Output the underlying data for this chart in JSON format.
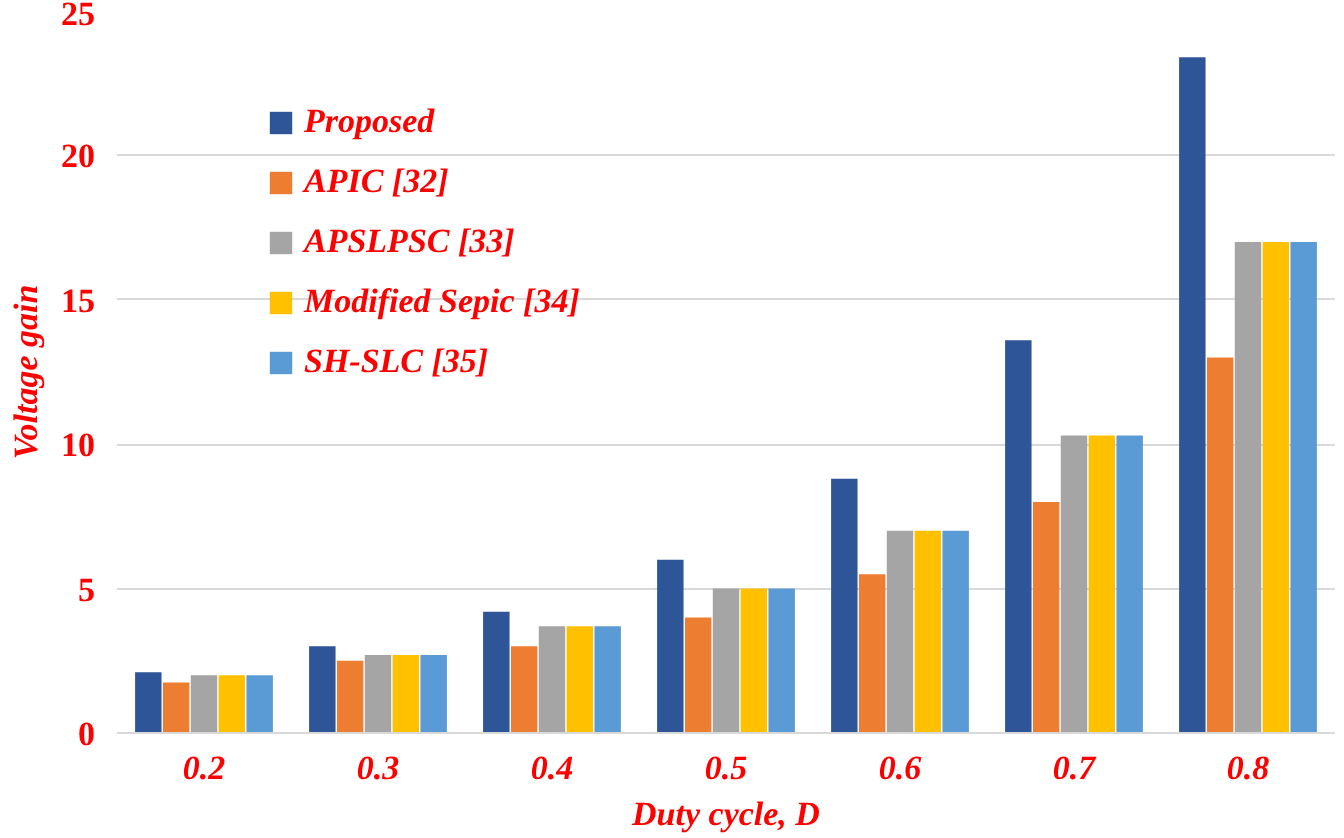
{
  "chart_data": {
    "type": "bar",
    "xlabel": "Duty cycle, D",
    "ylabel": "Voltage gain",
    "categories": [
      "0.2",
      "0.3",
      "0.4",
      "0.5",
      "0.6",
      "0.7",
      "0.8"
    ],
    "series": [
      {
        "name": "Proposed",
        "color": "#2e5597",
        "values": [
          2.1,
          3.0,
          4.2,
          6.0,
          8.8,
          13.6,
          23.4
        ]
      },
      {
        "name": "APIC [32]",
        "color": "#ed7d31",
        "values": [
          1.75,
          2.5,
          3.0,
          4.0,
          5.5,
          8.0,
          13.0
        ]
      },
      {
        "name": "APSLPSC [33]",
        "color": "#a5a5a5",
        "values": [
          2.0,
          2.7,
          3.7,
          5.0,
          7.0,
          10.3,
          17.0
        ]
      },
      {
        "name": "Modified Sepic [34]",
        "color": "#ffc000",
        "values": [
          2.0,
          2.7,
          3.7,
          5.0,
          7.0,
          10.3,
          17.0
        ]
      },
      {
        "name": "SH-SLC [35]",
        "color": "#5b9bd5",
        "values": [
          2.0,
          2.7,
          3.7,
          5.0,
          7.0,
          10.3,
          17.0
        ]
      }
    ],
    "ylim": [
      0,
      25
    ],
    "yticks": [
      0,
      5,
      10,
      15,
      20,
      25
    ],
    "grid": "y",
    "legend": "top left"
  }
}
